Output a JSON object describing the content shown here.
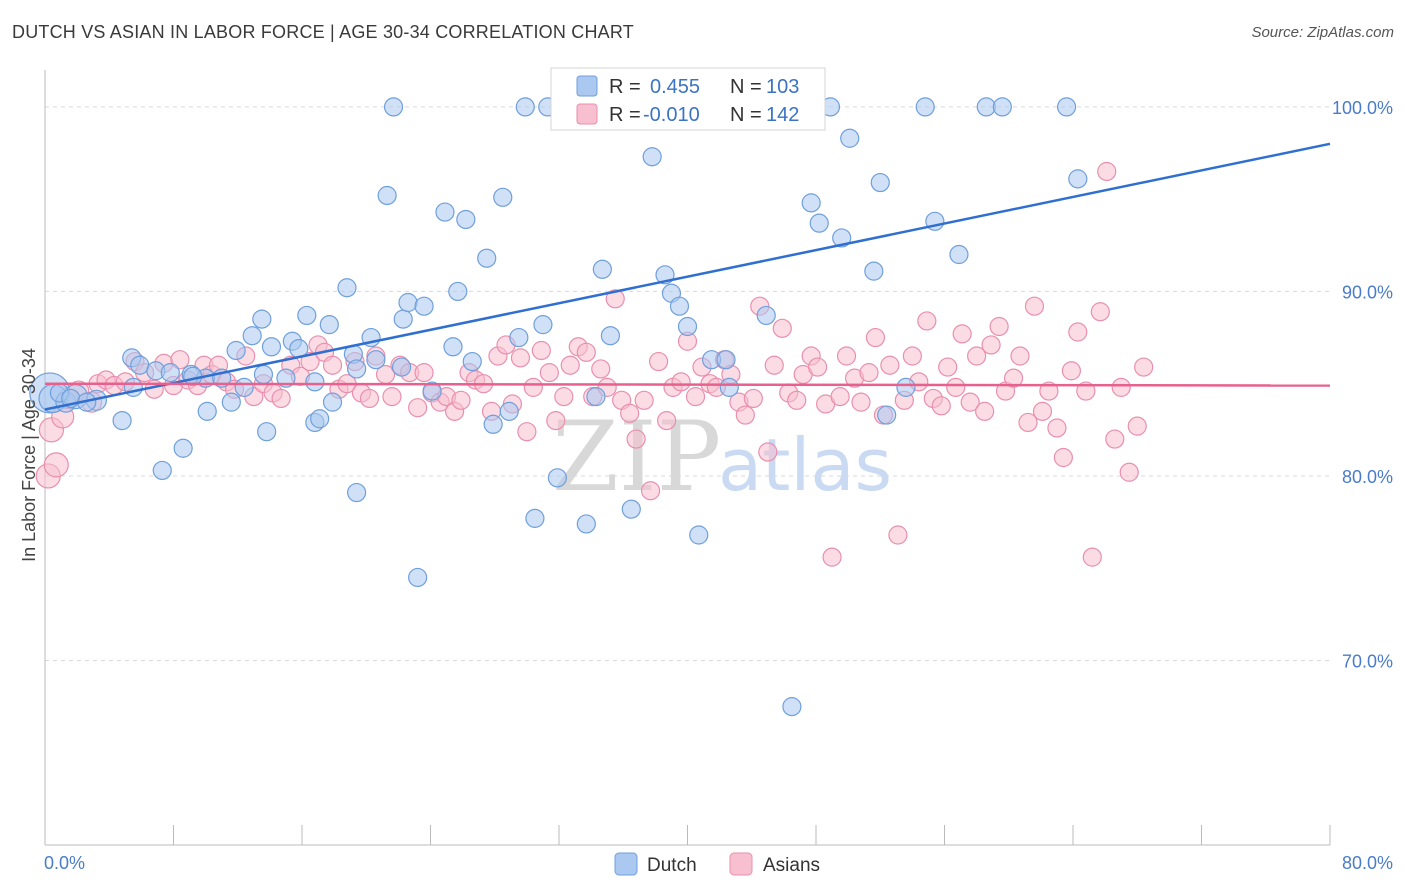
{
  "title": "DUTCH VS ASIAN IN LABOR FORCE | AGE 30-34 CORRELATION CHART",
  "source": "Source: ZipAtlas.com",
  "watermark": {
    "zip": "ZIP",
    "atlas": "atlas"
  },
  "legend": {
    "dutch": {
      "r_label": "R =",
      "r_value": "0.455",
      "n_label": "N =",
      "n_value": "103"
    },
    "asians": {
      "r_label": "R =",
      "r_value": "-0.010",
      "n_label": "N =",
      "n_value": "142"
    }
  },
  "bottom_legend": {
    "dutch": "Dutch",
    "asians": "Asians"
  },
  "colors": {
    "dutch_fill": "#aac8f0",
    "dutch_stroke": "#6f9fdc",
    "dutch_line": "#2f6fcf",
    "asian_fill": "#f7bfd0",
    "asian_stroke": "#e98fae",
    "asian_line": "#e8608d",
    "tick_text": "#4a7cc9",
    "grid": "#d9d9d9"
  },
  "chart_data": {
    "type": "scatter",
    "title": "DUTCH VS ASIAN IN LABOR FORCE | AGE 30-34 CORRELATION CHART",
    "xlabel": "",
    "ylabel": "In Labor Force | Age 30-34",
    "xlim": [
      0,
      80
    ],
    "ylim": [
      60,
      102
    ],
    "x_tick_labels": [
      "0.0%",
      "80.0%"
    ],
    "y_ticks": [
      70,
      80,
      90,
      100
    ],
    "y_tick_labels": [
      "70.0%",
      "80.0%",
      "90.0%",
      "100.0%"
    ],
    "grid": true,
    "legend_position": "top-center",
    "series": [
      {
        "name": "Dutch",
        "trend": {
          "x": [
            0,
            80
          ],
          "y": [
            83.6,
            98.0
          ]
        },
        "points": [
          [
            0.3,
            84.5
          ],
          [
            0.5,
            84.2
          ],
          [
            1.3,
            84.0
          ],
          [
            1.9,
            84.3
          ],
          [
            3.2,
            84.1
          ],
          [
            4.8,
            83.0
          ],
          [
            5.4,
            86.4
          ],
          [
            5.9,
            86.0
          ],
          [
            6.9,
            85.7
          ],
          [
            7.3,
            80.3
          ],
          [
            7.8,
            85.6
          ],
          [
            8.6,
            81.5
          ],
          [
            9.1,
            85.5
          ],
          [
            10.0,
            85.3
          ],
          [
            10.1,
            83.5
          ],
          [
            11.0,
            85.3
          ],
          [
            11.6,
            84.0
          ],
          [
            11.9,
            86.8
          ],
          [
            12.4,
            84.8
          ],
          [
            12.9,
            87.6
          ],
          [
            13.5,
            88.5
          ],
          [
            13.8,
            82.4
          ],
          [
            14.1,
            87.0
          ],
          [
            15.0,
            85.3
          ],
          [
            15.4,
            87.3
          ],
          [
            15.8,
            86.9
          ],
          [
            16.3,
            88.7
          ],
          [
            16.8,
            82.9
          ],
          [
            17.1,
            83.1
          ],
          [
            17.7,
            88.2
          ],
          [
            17.9,
            84.0
          ],
          [
            18.8,
            90.2
          ],
          [
            19.2,
            86.6
          ],
          [
            19.4,
            79.1
          ],
          [
            20.3,
            87.5
          ],
          [
            20.6,
            86.3
          ],
          [
            21.3,
            95.2
          ],
          [
            21.7,
            100.0
          ],
          [
            22.3,
            88.5
          ],
          [
            22.6,
            89.4
          ],
          [
            23.2,
            74.5
          ],
          [
            23.6,
            89.2
          ],
          [
            24.1,
            84.6
          ],
          [
            24.9,
            94.3
          ],
          [
            25.4,
            87.0
          ],
          [
            25.7,
            90.0
          ],
          [
            26.2,
            93.9
          ],
          [
            26.6,
            86.2
          ],
          [
            27.5,
            91.8
          ],
          [
            27.9,
            82.8
          ],
          [
            28.5,
            95.1
          ],
          [
            28.9,
            83.5
          ],
          [
            29.5,
            87.5
          ],
          [
            29.9,
            100.0
          ],
          [
            30.5,
            77.7
          ],
          [
            31.0,
            88.2
          ],
          [
            31.3,
            100.0
          ],
          [
            31.9,
            79.9
          ],
          [
            32.8,
            100.0
          ],
          [
            33.7,
            77.4
          ],
          [
            34.3,
            84.3
          ],
          [
            34.7,
            91.2
          ],
          [
            35.2,
            87.6
          ],
          [
            36.5,
            78.2
          ],
          [
            36.9,
            100.0
          ],
          [
            37.8,
            97.3
          ],
          [
            38.6,
            90.9
          ],
          [
            39.0,
            89.9
          ],
          [
            39.5,
            89.2
          ],
          [
            40.0,
            88.1
          ],
          [
            40.7,
            76.8
          ],
          [
            41.5,
            86.3
          ],
          [
            42.4,
            86.3
          ],
          [
            42.6,
            84.8
          ],
          [
            43.4,
            100.0
          ],
          [
            44.9,
            88.7
          ],
          [
            46.5,
            67.5
          ],
          [
            46.8,
            100.0
          ],
          [
            47.7,
            94.8
          ],
          [
            48.2,
            93.7
          ],
          [
            48.9,
            100.0
          ],
          [
            49.6,
            92.9
          ],
          [
            50.1,
            98.3
          ],
          [
            51.6,
            91.1
          ],
          [
            52.0,
            95.9
          ],
          [
            52.4,
            83.3
          ],
          [
            53.6,
            84.8
          ],
          [
            54.8,
            100.0
          ],
          [
            55.4,
            93.8
          ],
          [
            56.9,
            92.0
          ],
          [
            58.6,
            100.0
          ],
          [
            59.6,
            100.0
          ],
          [
            63.6,
            100.0
          ],
          [
            64.3,
            96.1
          ],
          [
            0.9,
            84.5
          ],
          [
            1.6,
            84.2
          ],
          [
            2.6,
            84.0
          ],
          [
            5.5,
            84.8
          ],
          [
            9.2,
            85.4
          ],
          [
            13.6,
            85.5
          ],
          [
            16.8,
            85.1
          ],
          [
            19.4,
            85.8
          ],
          [
            22.2,
            85.9
          ]
        ],
        "sizes": [
          20,
          14,
          10,
          12,
          10,
          9,
          9,
          9,
          9,
          9,
          9,
          9,
          9,
          9,
          9,
          9,
          9,
          9,
          9,
          9,
          9,
          9,
          9,
          9,
          9,
          9,
          9,
          9,
          9,
          9,
          9,
          9,
          9,
          9,
          9,
          9,
          9,
          9,
          9,
          9,
          9,
          9,
          9,
          9,
          9,
          9,
          9,
          9,
          9,
          9,
          9,
          9,
          9,
          9,
          9,
          9,
          9,
          9,
          9,
          9,
          9,
          9,
          9,
          9,
          9,
          9,
          9,
          9,
          9,
          9,
          9,
          9,
          9,
          9,
          9,
          9,
          9,
          9,
          9,
          9,
          9,
          9,
          9,
          9,
          9,
          9,
          9,
          9,
          9,
          9,
          9,
          9,
          9,
          9,
          9,
          9,
          9,
          9,
          9,
          9,
          9,
          9,
          9
        ]
      },
      {
        "name": "Asians",
        "trend": {
          "x": [
            0,
            80
          ],
          "y": [
            85.0,
            84.9
          ]
        },
        "points": [
          [
            0.2,
            80.0
          ],
          [
            0.4,
            82.5
          ],
          [
            0.7,
            80.6
          ],
          [
            1.1,
            83.2
          ],
          [
            1.4,
            84.2
          ],
          [
            2.1,
            84.6
          ],
          [
            2.9,
            84.0
          ],
          [
            3.3,
            85.0
          ],
          [
            3.8,
            85.2
          ],
          [
            4.3,
            84.9
          ],
          [
            5.0,
            85.1
          ],
          [
            5.6,
            86.2
          ],
          [
            6.2,
            85.6
          ],
          [
            6.8,
            84.7
          ],
          [
            7.4,
            86.1
          ],
          [
            8.0,
            84.9
          ],
          [
            8.4,
            86.3
          ],
          [
            8.9,
            85.2
          ],
          [
            9.5,
            84.9
          ],
          [
            9.9,
            86.0
          ],
          [
            10.4,
            85.5
          ],
          [
            10.8,
            86.0
          ],
          [
            11.3,
            85.1
          ],
          [
            11.8,
            84.7
          ],
          [
            12.5,
            86.5
          ],
          [
            13.0,
            84.3
          ],
          [
            13.6,
            85.0
          ],
          [
            14.2,
            84.5
          ],
          [
            14.7,
            84.2
          ],
          [
            15.3,
            86.0
          ],
          [
            15.9,
            85.4
          ],
          [
            16.5,
            86.2
          ],
          [
            17.0,
            87.1
          ],
          [
            17.4,
            86.7
          ],
          [
            17.9,
            86.0
          ],
          [
            18.3,
            84.7
          ],
          [
            18.8,
            85.0
          ],
          [
            19.3,
            86.2
          ],
          [
            19.7,
            84.5
          ],
          [
            20.2,
            84.2
          ],
          [
            20.6,
            86.5
          ],
          [
            21.2,
            85.5
          ],
          [
            21.6,
            84.3
          ],
          [
            22.1,
            86.0
          ],
          [
            22.7,
            85.6
          ],
          [
            23.2,
            83.7
          ],
          [
            23.6,
            85.6
          ],
          [
            24.1,
            84.5
          ],
          [
            24.6,
            84.0
          ],
          [
            25.0,
            84.3
          ],
          [
            25.5,
            83.5
          ],
          [
            25.9,
            84.1
          ],
          [
            26.4,
            85.6
          ],
          [
            26.8,
            85.2
          ],
          [
            27.3,
            85.0
          ],
          [
            27.8,
            83.5
          ],
          [
            28.2,
            86.5
          ],
          [
            28.7,
            87.1
          ],
          [
            29.1,
            83.9
          ],
          [
            29.6,
            86.4
          ],
          [
            30.0,
            82.4
          ],
          [
            30.4,
            84.8
          ],
          [
            30.9,
            86.8
          ],
          [
            31.4,
            85.6
          ],
          [
            31.8,
            83.0
          ],
          [
            32.3,
            84.3
          ],
          [
            32.7,
            86.0
          ],
          [
            33.2,
            87.0
          ],
          [
            33.7,
            86.7
          ],
          [
            34.1,
            84.3
          ],
          [
            34.6,
            85.8
          ],
          [
            35.0,
            84.8
          ],
          [
            35.5,
            89.6
          ],
          [
            35.9,
            84.1
          ],
          [
            36.4,
            83.4
          ],
          [
            36.8,
            82.0
          ],
          [
            37.3,
            84.1
          ],
          [
            37.7,
            79.2
          ],
          [
            38.2,
            86.2
          ],
          [
            38.7,
            83.0
          ],
          [
            39.1,
            84.8
          ],
          [
            39.6,
            85.1
          ],
          [
            40.0,
            87.3
          ],
          [
            40.5,
            84.3
          ],
          [
            40.9,
            85.9
          ],
          [
            41.4,
            85.0
          ],
          [
            41.8,
            84.8
          ],
          [
            42.3,
            86.3
          ],
          [
            42.7,
            85.5
          ],
          [
            43.2,
            84.0
          ],
          [
            43.6,
            83.3
          ],
          [
            44.1,
            84.2
          ],
          [
            44.5,
            89.2
          ],
          [
            45.0,
            81.3
          ],
          [
            45.4,
            86.0
          ],
          [
            45.9,
            88.0
          ],
          [
            46.3,
            84.5
          ],
          [
            46.8,
            84.1
          ],
          [
            47.2,
            85.5
          ],
          [
            47.7,
            86.5
          ],
          [
            48.1,
            85.9
          ],
          [
            48.6,
            83.9
          ],
          [
            49.0,
            75.6
          ],
          [
            49.5,
            84.3
          ],
          [
            49.9,
            86.5
          ],
          [
            50.4,
            85.3
          ],
          [
            50.8,
            84.0
          ],
          [
            51.3,
            85.6
          ],
          [
            51.7,
            87.5
          ],
          [
            52.2,
            83.3
          ],
          [
            52.6,
            86.0
          ],
          [
            53.1,
            76.8
          ],
          [
            53.5,
            84.1
          ],
          [
            54.0,
            86.5
          ],
          [
            54.4,
            85.1
          ],
          [
            54.9,
            88.4
          ],
          [
            55.3,
            84.2
          ],
          [
            55.8,
            83.8
          ],
          [
            56.2,
            85.9
          ],
          [
            56.7,
            84.8
          ],
          [
            57.1,
            87.7
          ],
          [
            57.6,
            84.0
          ],
          [
            58.0,
            86.5
          ],
          [
            58.5,
            83.5
          ],
          [
            58.9,
            87.1
          ],
          [
            59.4,
            88.1
          ],
          [
            59.8,
            84.6
          ],
          [
            60.3,
            85.3
          ],
          [
            60.7,
            86.5
          ],
          [
            61.2,
            82.9
          ],
          [
            61.6,
            89.2
          ],
          [
            62.1,
            83.5
          ],
          [
            62.5,
            84.6
          ],
          [
            63.0,
            82.6
          ],
          [
            63.4,
            81.0
          ],
          [
            63.9,
            85.7
          ],
          [
            64.3,
            87.8
          ],
          [
            64.8,
            84.6
          ],
          [
            65.2,
            75.6
          ],
          [
            65.7,
            88.9
          ],
          [
            66.1,
            96.5
          ],
          [
            66.6,
            82.0
          ],
          [
            67.0,
            84.8
          ],
          [
            67.5,
            80.2
          ],
          [
            68.0,
            82.7
          ],
          [
            68.4,
            85.9
          ]
        ],
        "sizes": [
          12,
          12,
          12,
          11,
          10,
          10,
          10,
          9,
          9,
          9,
          9,
          9,
          9,
          9,
          9,
          9,
          9,
          9,
          9,
          9,
          9,
          9,
          9,
          9,
          9,
          9,
          9,
          9,
          9,
          9,
          9,
          9,
          9,
          9,
          9,
          9,
          9,
          9,
          9,
          9,
          9,
          9,
          9,
          9,
          9,
          9,
          9,
          9,
          9,
          9,
          9,
          9,
          9,
          9,
          9,
          9,
          9,
          9,
          9,
          9,
          9,
          9,
          9,
          9,
          9,
          9,
          9,
          9,
          9,
          9,
          9,
          9,
          9,
          9,
          9,
          9,
          9,
          9,
          9,
          9,
          9,
          9,
          9,
          9,
          9,
          9,
          9,
          9,
          9,
          9,
          9,
          9,
          9,
          9,
          9,
          9,
          9,
          9,
          9,
          9,
          9,
          9,
          9,
          9,
          9,
          9,
          9,
          9,
          9,
          9,
          9,
          9,
          9,
          9,
          9,
          9,
          9,
          9,
          9,
          9,
          9,
          9,
          9,
          9,
          9,
          9,
          9,
          9,
          9,
          9,
          9,
          9,
          9,
          9,
          9,
          9,
          9,
          9,
          9,
          9,
          9,
          9
        ]
      }
    ]
  }
}
